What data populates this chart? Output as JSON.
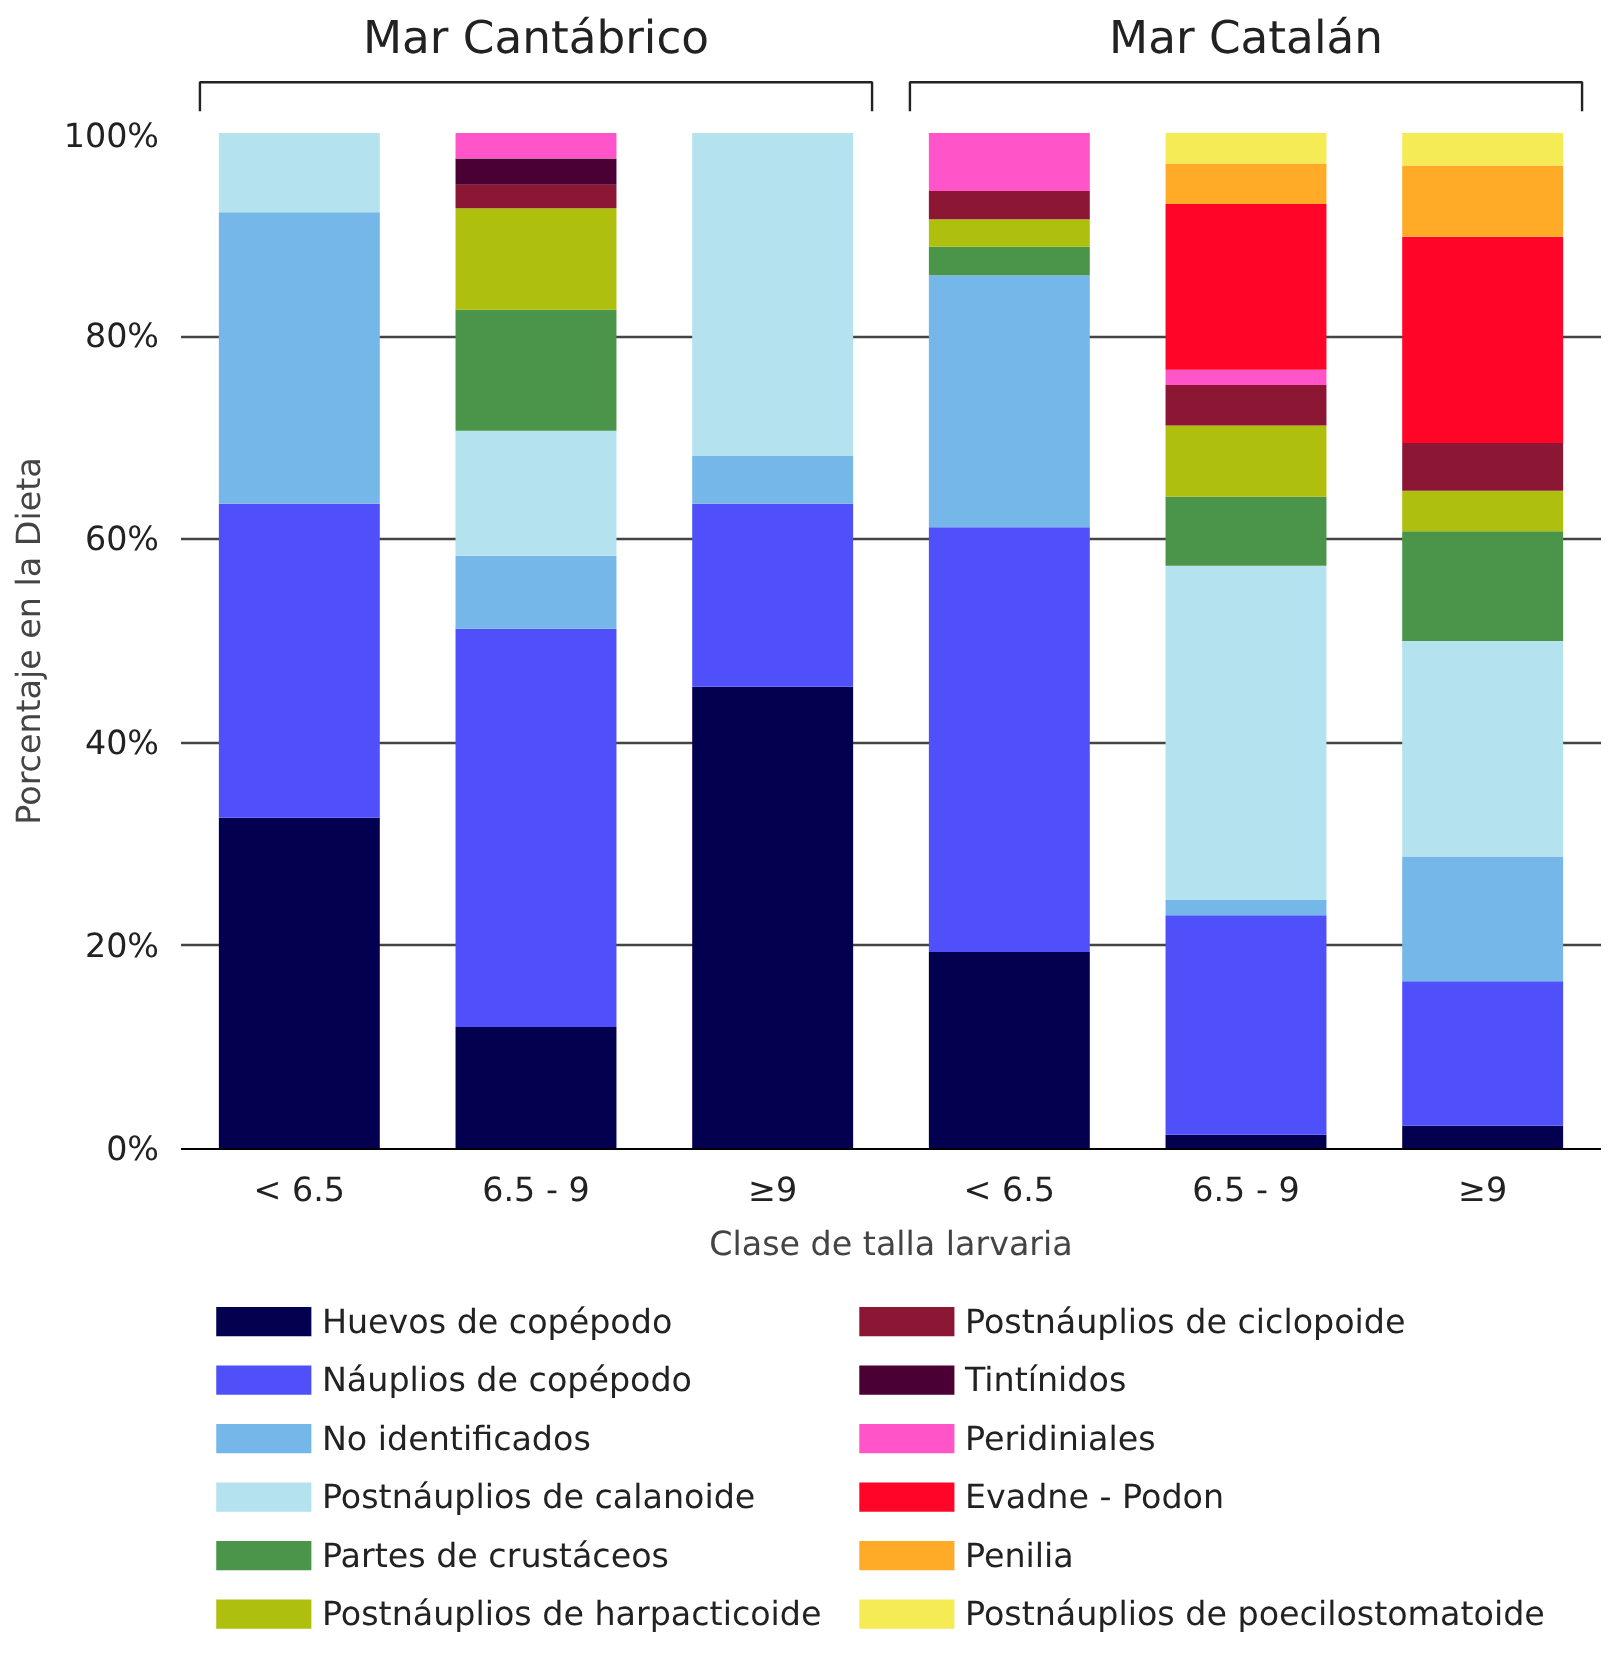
{
  "chart_data": {
    "type": "bar",
    "stacked": true,
    "categories": [
      "< 6.5",
      "6.5 - 9",
      "≥9",
      "< 6.5",
      "6.5 - 9",
      "≥9"
    ],
    "annotations": [
      "Mar Cantábrico",
      "Mar Catalán"
    ],
    "xlabel": "Clase de talla larvaria",
    "ylabel": "Porcentaje en la Dieta",
    "ylim": [
      0,
      100
    ],
    "yticks": [
      {
        "value": 0,
        "label": "0%"
      },
      {
        "value": 20,
        "label": "20%"
      },
      {
        "value": 40,
        "label": "40%"
      },
      {
        "value": 60,
        "label": "60%"
      },
      {
        "value": 80,
        "label": "80%"
      },
      {
        "value": 100,
        "label": "100%"
      }
    ],
    "grid": "y",
    "legend": "bottom",
    "series": [
      {
        "name": "Huevos de copépodo",
        "color": "#03004f",
        "values": [
          32.6,
          12.0,
          45.5,
          19.4,
          1.4,
          2.3
        ]
      },
      {
        "name": "Náuplios de copépodo",
        "color": "#5050fa",
        "values": [
          30.9,
          39.2,
          18.0,
          41.8,
          21.6,
          14.2
        ]
      },
      {
        "name": "No identificados",
        "color": "#76b7ea",
        "values": [
          28.7,
          7.2,
          4.7,
          24.8,
          1.5,
          12.3
        ]
      },
      {
        "name": "Postnáuplios de calanoide",
        "color": "#b4e2ef",
        "values": [
          7.8,
          12.3,
          31.8,
          0,
          32.9,
          21.2
        ]
      },
      {
        "name": "Partes de crustáceos",
        "color": "#4a9549",
        "values": [
          0,
          11.9,
          0,
          2.8,
          6.8,
          10.8
        ]
      },
      {
        "name": "Postnáuplios de harpacticoide",
        "color": "#aebf0d",
        "values": [
          0,
          10.0,
          0,
          2.7,
          7.0,
          4.0
        ]
      },
      {
        "name": "Postnáuplios de ciclopoide",
        "color": "#8c1734",
        "values": [
          0,
          2.3,
          0,
          2.8,
          4.0,
          4.7
        ]
      },
      {
        "name": "Tintínidos",
        "color": "#4a0033",
        "values": [
          0,
          2.6,
          0,
          0,
          0,
          0
        ]
      },
      {
        "name": "Peridiniales",
        "color": "#ff55c9",
        "values": [
          0,
          2.5,
          0,
          5.7,
          1.5,
          0
        ]
      },
      {
        "name": "Evadne - Podon",
        "color": "#ff0628",
        "values": [
          0,
          0,
          0,
          0,
          16.3,
          20.3
        ]
      },
      {
        "name": "Penilia",
        "color": "#ffab27",
        "values": [
          0,
          0,
          0,
          0,
          4.0,
          7.0
        ]
      },
      {
        "name": "Postnáuplios de poecilostomatoide",
        "color": "#f5eb55",
        "values": [
          0,
          0,
          0,
          0,
          3.0,
          3.2
        ]
      }
    ]
  }
}
